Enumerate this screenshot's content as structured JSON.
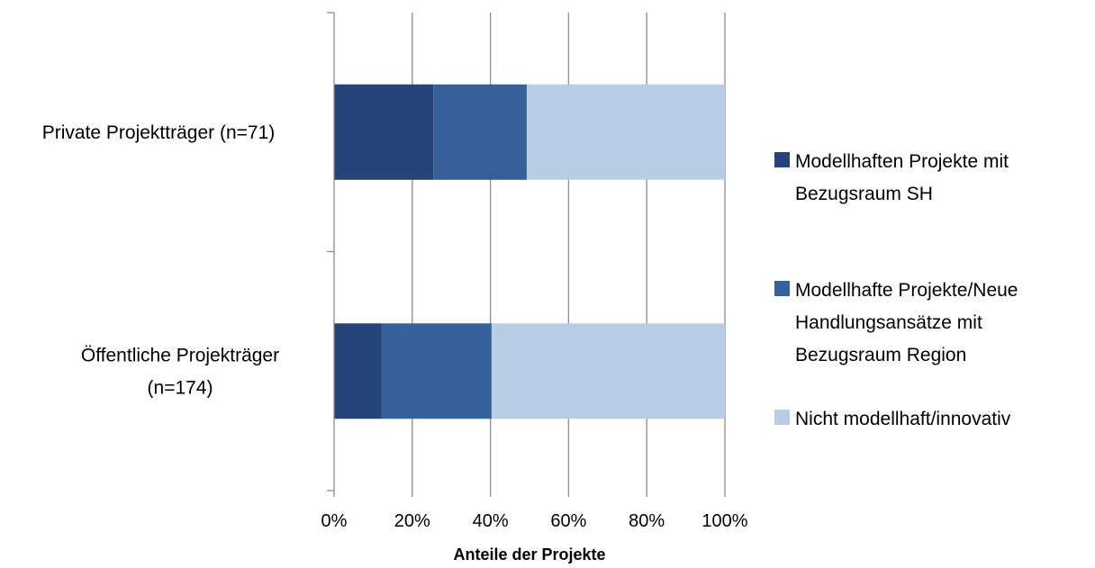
{
  "chart_data": {
    "type": "bar",
    "orientation": "horizontal",
    "stacked": "percent",
    "categories": [
      "Private Projektträger (n=71)",
      "Öffentliche Projekträger (n=174)"
    ],
    "category_lines": [
      [
        "Private Projektträger (n=71)"
      ],
      [
        "Öffentliche Projekträger",
        "(n=174)"
      ]
    ],
    "series": [
      {
        "name": "Modellhaften Projekte mit Bezugsraum SH",
        "name_lines": [
          "Modellhaften Projekte mit",
          "Bezugsraum SH"
        ],
        "values": [
          25.4,
          12.1
        ],
        "color": "#264478"
      },
      {
        "name": "Modellhafte Projekte/Neue Handlungsansätze mit Bezugsraum Region",
        "name_lines": [
          "Modellhafte Projekte/Neue",
          "Handlungsansätze mit",
          "Bezugsraum Region"
        ],
        "values": [
          23.9,
          28.2
        ],
        "color": "#376099"
      },
      {
        "name": "Nicht modellhaft/innovativ",
        "name_lines": [
          "Nicht modellhaft/innovativ"
        ],
        "values": [
          50.7,
          59.7
        ],
        "color": "#b9cde5"
      }
    ],
    "xlabel": "Anteile der Projekte",
    "xlim": [
      0,
      100
    ],
    "xticks": [
      "0%",
      "20%",
      "40%",
      "60%",
      "80%",
      "100%"
    ],
    "grid": true,
    "legend_position": "right"
  }
}
